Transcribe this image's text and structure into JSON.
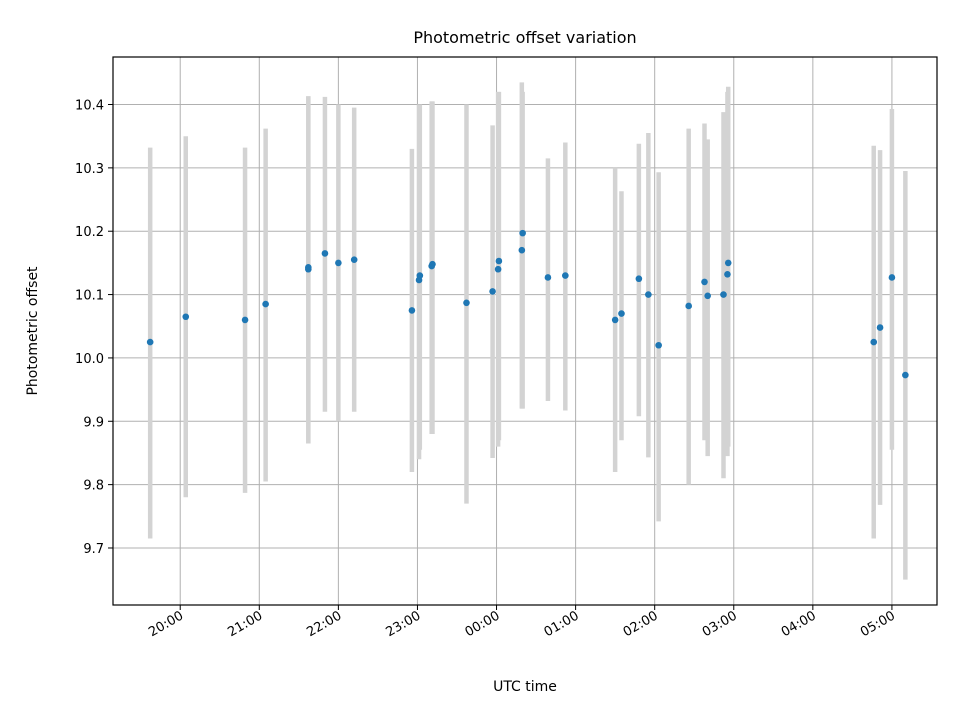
{
  "chart_data": {
    "type": "scatter",
    "title": "Photometric offset variation",
    "xlabel": "UTC time",
    "ylabel": "Photometric offset",
    "x_ticks": [
      "20:00",
      "21:00",
      "22:00",
      "23:00",
      "00:00",
      "01:00",
      "02:00",
      "03:00",
      "04:00",
      "05:00"
    ],
    "x_tick_values": [
      20,
      21,
      22,
      23,
      24,
      25,
      26,
      27,
      28,
      29
    ],
    "y_ticks": [
      "9.7",
      "9.8",
      "9.9",
      "10.0",
      "10.1",
      "10.2",
      "10.3",
      "10.4"
    ],
    "y_tick_values": [
      9.7,
      9.8,
      9.9,
      10.0,
      10.1,
      10.2,
      10.3,
      10.4
    ],
    "xlim": [
      19.15,
      29.57
    ],
    "ylim": [
      9.61,
      10.475
    ],
    "grid": true,
    "colors": {
      "point": "#1f77b4",
      "errorbar": "#d3d3d3"
    },
    "points": [
      {
        "x": 19.62,
        "y": 10.025,
        "low": 9.715,
        "high": 10.332
      },
      {
        "x": 20.07,
        "y": 10.065,
        "low": 9.78,
        "high": 10.35
      },
      {
        "x": 20.82,
        "y": 10.06,
        "low": 9.787,
        "high": 10.332
      },
      {
        "x": 21.08,
        "y": 10.085,
        "low": 9.805,
        "high": 10.362
      },
      {
        "x": 21.62,
        "y": 10.14,
        "low": 9.865,
        "high": 10.413
      },
      {
        "x": 21.62,
        "y": 10.143,
        "low": 9.865,
        "high": 10.413
      },
      {
        "x": 21.83,
        "y": 10.165,
        "low": 9.915,
        "high": 10.412
      },
      {
        "x": 22.0,
        "y": 10.15,
        "low": 9.9,
        "high": 10.4
      },
      {
        "x": 22.2,
        "y": 10.155,
        "low": 9.915,
        "high": 10.395
      },
      {
        "x": 22.93,
        "y": 10.075,
        "low": 9.82,
        "high": 10.33
      },
      {
        "x": 23.02,
        "y": 10.123,
        "low": 9.84,
        "high": 10.4
      },
      {
        "x": 23.03,
        "y": 10.13,
        "low": 9.855,
        "high": 10.4
      },
      {
        "x": 23.18,
        "y": 10.145,
        "low": 9.88,
        "high": 10.405
      },
      {
        "x": 23.19,
        "y": 10.148,
        "low": 9.88,
        "high": 10.405
      },
      {
        "x": 23.62,
        "y": 10.087,
        "low": 9.77,
        "high": 10.4
      },
      {
        "x": 23.95,
        "y": 10.105,
        "low": 9.842,
        "high": 10.367
      },
      {
        "x": 24.02,
        "y": 10.14,
        "low": 9.86,
        "high": 10.42
      },
      {
        "x": 24.03,
        "y": 10.153,
        "low": 9.87,
        "high": 10.42
      },
      {
        "x": 24.32,
        "y": 10.17,
        "low": 9.92,
        "high": 10.435
      },
      {
        "x": 24.33,
        "y": 10.197,
        "low": 9.92,
        "high": 10.42
      },
      {
        "x": 24.65,
        "y": 10.127,
        "low": 9.932,
        "high": 10.315
      },
      {
        "x": 24.87,
        "y": 10.13,
        "low": 9.917,
        "high": 10.34
      },
      {
        "x": 25.5,
        "y": 10.06,
        "low": 9.82,
        "high": 10.3
      },
      {
        "x": 25.58,
        "y": 10.07,
        "low": 9.87,
        "high": 10.263
      },
      {
        "x": 25.8,
        "y": 10.125,
        "low": 9.908,
        "high": 10.338
      },
      {
        "x": 25.92,
        "y": 10.1,
        "low": 9.843,
        "high": 10.355
      },
      {
        "x": 26.05,
        "y": 10.02,
        "low": 9.742,
        "high": 10.293
      },
      {
        "x": 26.43,
        "y": 10.082,
        "low": 9.8,
        "high": 10.362
      },
      {
        "x": 26.63,
        "y": 10.12,
        "low": 9.87,
        "high": 10.37
      },
      {
        "x": 26.67,
        "y": 10.098,
        "low": 9.845,
        "high": 10.345
      },
      {
        "x": 26.87,
        "y": 10.1,
        "low": 9.81,
        "high": 10.388
      },
      {
        "x": 26.92,
        "y": 10.132,
        "low": 9.845,
        "high": 10.42
      },
      {
        "x": 26.93,
        "y": 10.15,
        "low": 9.86,
        "high": 10.428
      },
      {
        "x": 28.77,
        "y": 10.025,
        "low": 9.715,
        "high": 10.335
      },
      {
        "x": 28.85,
        "y": 10.048,
        "low": 9.768,
        "high": 10.328
      },
      {
        "x": 29.0,
        "y": 10.127,
        "low": 9.855,
        "high": 10.393
      },
      {
        "x": 29.17,
        "y": 9.973,
        "low": 9.65,
        "high": 10.295
      }
    ]
  }
}
